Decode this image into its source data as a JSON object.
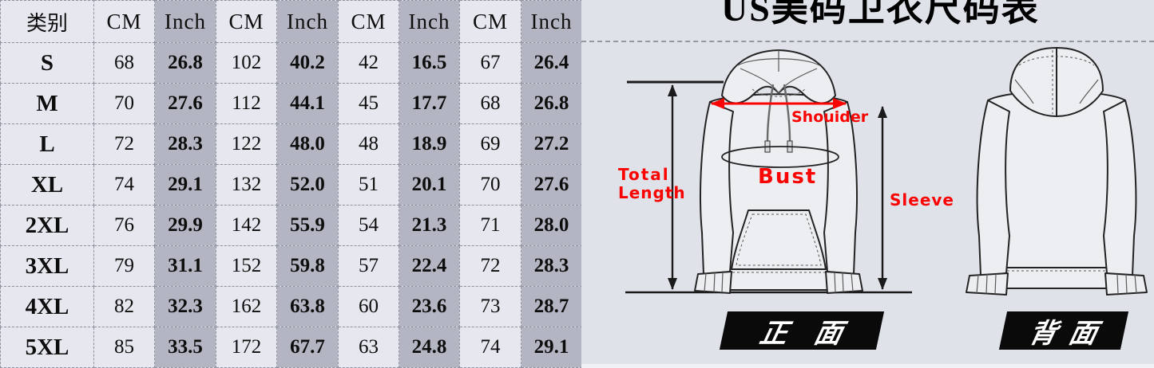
{
  "title": "US美码卫衣尺码表",
  "table": {
    "header": [
      "类别",
      "CM",
      "Inch",
      "CM",
      "Inch",
      "CM",
      "Inch",
      "CM",
      "Inch"
    ],
    "rows": [
      {
        "size": "S",
        "values": [
          "68",
          "26.8",
          "102",
          "40.2",
          "42",
          "16.5",
          "67",
          "26.4"
        ]
      },
      {
        "size": "M",
        "values": [
          "70",
          "27.6",
          "112",
          "44.1",
          "45",
          "17.7",
          "68",
          "26.8"
        ]
      },
      {
        "size": "L",
        "values": [
          "72",
          "28.3",
          "122",
          "48.0",
          "48",
          "18.9",
          "69",
          "27.2"
        ]
      },
      {
        "size": "XL",
        "values": [
          "74",
          "29.1",
          "132",
          "52.0",
          "51",
          "20.1",
          "70",
          "27.6"
        ]
      },
      {
        "size": "2XL",
        "values": [
          "76",
          "29.9",
          "142",
          "55.9",
          "54",
          "21.3",
          "71",
          "28.0"
        ]
      },
      {
        "size": "3XL",
        "values": [
          "79",
          "31.1",
          "152",
          "59.8",
          "57",
          "22.4",
          "72",
          "28.3"
        ]
      },
      {
        "size": "4XL",
        "values": [
          "82",
          "32.3",
          "162",
          "63.8",
          "60",
          "23.6",
          "73",
          "28.7"
        ]
      },
      {
        "size": "5XL",
        "values": [
          "85",
          "33.5",
          "172",
          "67.7",
          "63",
          "24.8",
          "74",
          "29.1"
        ]
      }
    ]
  },
  "diagram": {
    "labels": {
      "total_length_line1": "Total",
      "total_length_line2": "Length",
      "shoulder": "Shouider",
      "bust": "Bust",
      "sleeve": "Sleeve",
      "front_view": "正面",
      "back_view": "背面"
    }
  },
  "colors": {
    "background": "#e0e2ea",
    "table_light_column": "#e7e8ef",
    "table_dark_column": "#b3b6c2",
    "dashed_border": "#8f93a0",
    "annotation_red": "#fb0300",
    "line_black": "#1a1a1a",
    "hoodie_fill": "#edeef2",
    "view_tag_background": "#0a0a0a",
    "view_tag_text": "#ffffff"
  }
}
